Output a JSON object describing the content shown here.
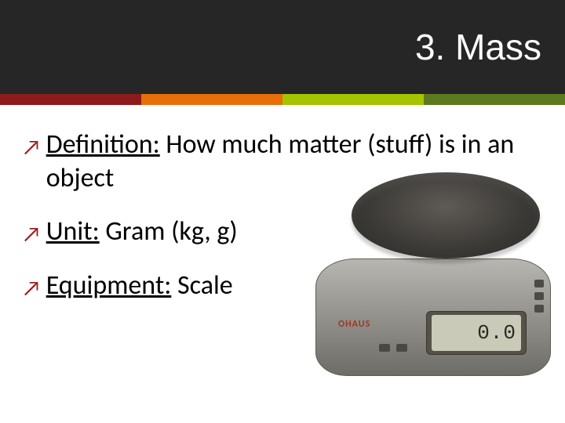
{
  "header": {
    "title": "3. Mass",
    "bg_color": "#262626",
    "title_color": "#ffffff",
    "title_fontsize": 46
  },
  "stripe_colors": [
    "#8d1b1b",
    "#e86e0a",
    "#a4c400",
    "#5e7a1f"
  ],
  "bullets": [
    {
      "label": "Definition:",
      "text": " How much matter (stuff) is in an object"
    },
    {
      "label": "Unit:",
      "text": " Gram (kg, g)"
    },
    {
      "label": "Equipment:",
      "text": " Scale"
    }
  ],
  "bullet_arrow_color": "#9c1e1e",
  "body_fontsize": 34,
  "scale": {
    "brand": "OHAUS",
    "display_value": "0.0",
    "body_color": "#8c8a84",
    "plate_color": "#3b3935",
    "lcd_bg": "#c9cab8"
  }
}
